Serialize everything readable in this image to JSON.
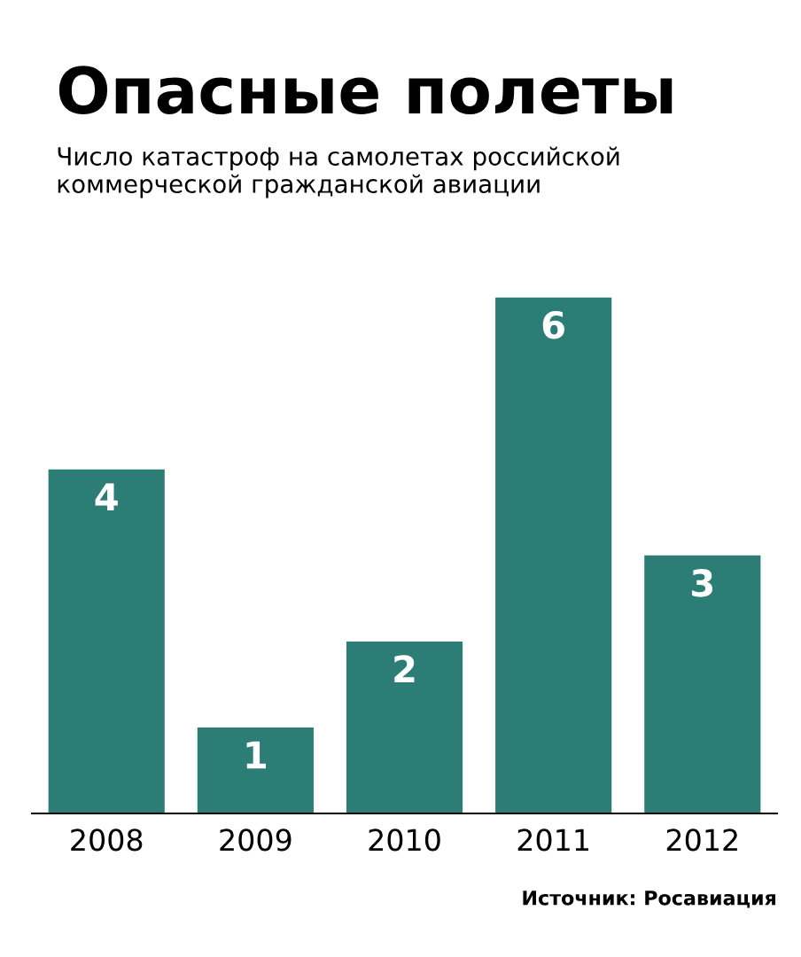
{
  "chart_data": {
    "type": "bar",
    "title": "Опасные полеты",
    "subtitle": "Число катастроф на самолетах российской коммерческой гражданской авиации",
    "categories": [
      "2008",
      "2009",
      "2010",
      "2011",
      "2012"
    ],
    "values": [
      4,
      1,
      2,
      6,
      3
    ],
    "color": "#2b7d76",
    "data_labels": true,
    "annotations": [
      "Источник: Росавиация"
    ]
  }
}
